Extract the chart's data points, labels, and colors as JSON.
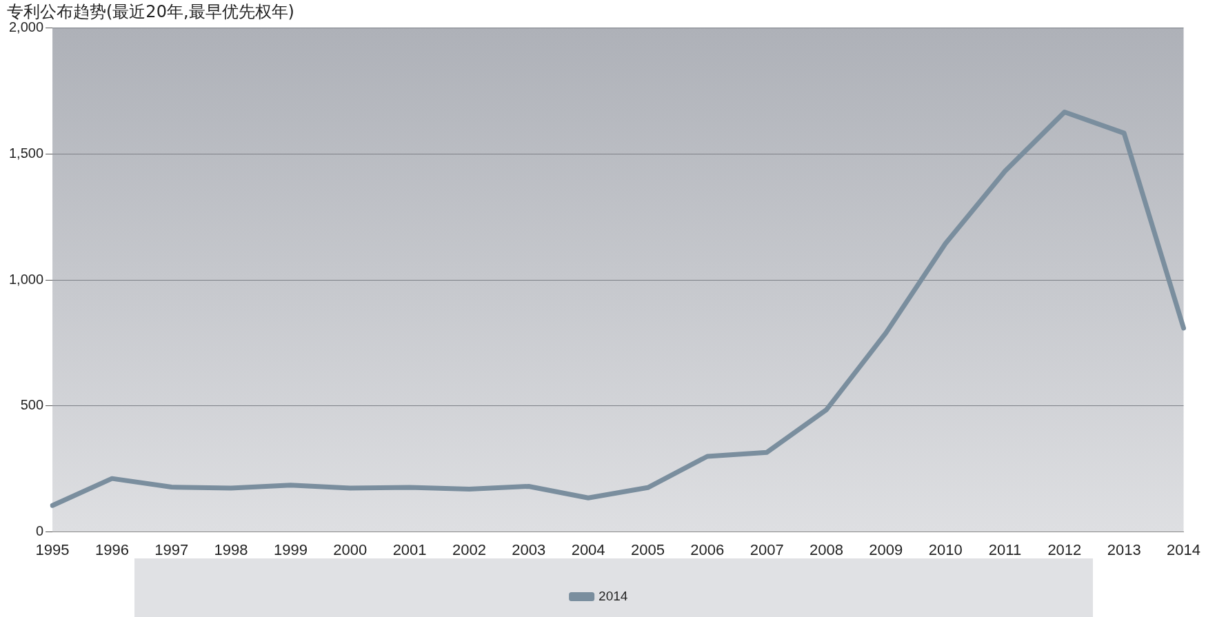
{
  "chart_data": {
    "type": "line",
    "title": "专利公布趋势(最近20年,最早优先权年)",
    "categories": [
      "1995",
      "1996",
      "1997",
      "1998",
      "1999",
      "2000",
      "2001",
      "2002",
      "2003",
      "2004",
      "2005",
      "2006",
      "2007",
      "2008",
      "2009",
      "2010",
      "2011",
      "2012",
      "2013",
      "2014"
    ],
    "series": [
      {
        "name": "2014",
        "color": "#7a8e9e",
        "values": [
          105,
          212,
          178,
          174,
          186,
          174,
          177,
          170,
          181,
          135,
          176,
          300,
          316,
          485,
          790,
          1145,
          1432,
          1667,
          1583,
          809
        ]
      }
    ],
    "ylim": [
      0,
      2000
    ],
    "yticks": [
      {
        "value": 0,
        "label": "0"
      },
      {
        "value": 500,
        "label": "500"
      },
      {
        "value": 1000,
        "label": "1,000"
      },
      {
        "value": 1500,
        "label": "1,500"
      },
      {
        "value": 2000,
        "label": "2,000"
      }
    ],
    "grid": "y",
    "legend": "bottom",
    "marker": "none",
    "line_style": "solid"
  }
}
